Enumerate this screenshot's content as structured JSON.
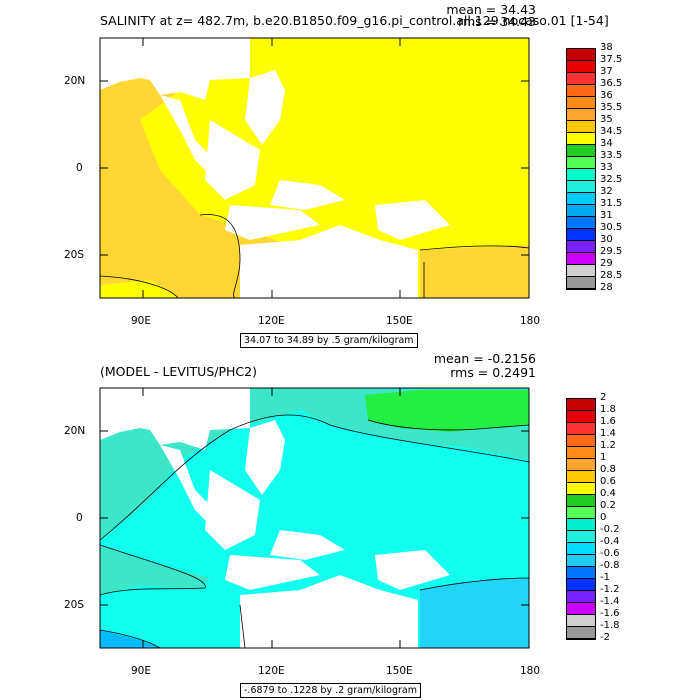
{
  "panels": [
    {
      "title": "SALINITY at z= 482.7m, b.e20.B1850.f09_g16.pi_control.all.129.nocaso.01 [1-54]",
      "mean_label": "mean = 34.43",
      "rms_label": "rms = 34.43",
      "range_label": "34.07 to 34.89 by .5 gram/kilogram",
      "colorbar_labels": [
        "38",
        "37.5",
        "37",
        "36.5",
        "36",
        "35.5",
        "35",
        "34.5",
        "34",
        "33.5",
        "33",
        "32.5",
        "32",
        "31.5",
        "31",
        "30.5",
        "30",
        "29.5",
        "29",
        "28.5",
        "28"
      ],
      "colorbar_colors": [
        "#c40000",
        "#e80000",
        "#ff3333",
        "#ff6a1a",
        "#ff8c1a",
        "#ffa630",
        "#ffc800",
        "#ffff00",
        "#22cc22",
        "#55ff55",
        "#00ffcc",
        "#22eedd",
        "#00ccff",
        "#00aaee",
        "#0077ff",
        "#0033ff",
        "#7722ff",
        "#cc00ff",
        "#d0d0d0",
        "#999999"
      ],
      "fields": {
        "base": "#fdd830",
        "warm": "#ffff00",
        "cool": "#fdd830"
      }
    },
    {
      "title": "(MODEL - LEVITUS/PHC2)",
      "mean_label": "mean = -0.2156",
      "rms_label": "rms = 0.2491",
      "range_label": "-.6879 to .1228 by .2 gram/kilogram",
      "colorbar_labels": [
        "2",
        "1.8",
        "1.6",
        "1.4",
        "1.2",
        "1",
        "0.8",
        "0.6",
        "0.4",
        "0.2",
        "0",
        "-0.2",
        "-0.4",
        "-0.6",
        "-0.8",
        "-1",
        "-1.2",
        "-1.4",
        "-1.6",
        "-1.8",
        "-2"
      ],
      "colorbar_colors": [
        "#c40000",
        "#e80000",
        "#ff3333",
        "#ff6a1a",
        "#ff8c1a",
        "#ffa630",
        "#ffc800",
        "#ffff00",
        "#22cc22",
        "#55ff55",
        "#00eecc",
        "#22eedd",
        "#00ddff",
        "#22ccf0",
        "#0077ff",
        "#0033ff",
        "#7722ff",
        "#cc00ff",
        "#d0d0d0",
        "#999999"
      ],
      "fields": {
        "base": "#10ffee",
        "warm": "#22ee44",
        "cool": "#3ce6c8"
      }
    }
  ],
  "axes": {
    "lat_ticks": [
      "20N",
      "0",
      "20S"
    ],
    "lon_ticks": [
      "90E",
      "120E",
      "150E",
      "180"
    ]
  }
}
